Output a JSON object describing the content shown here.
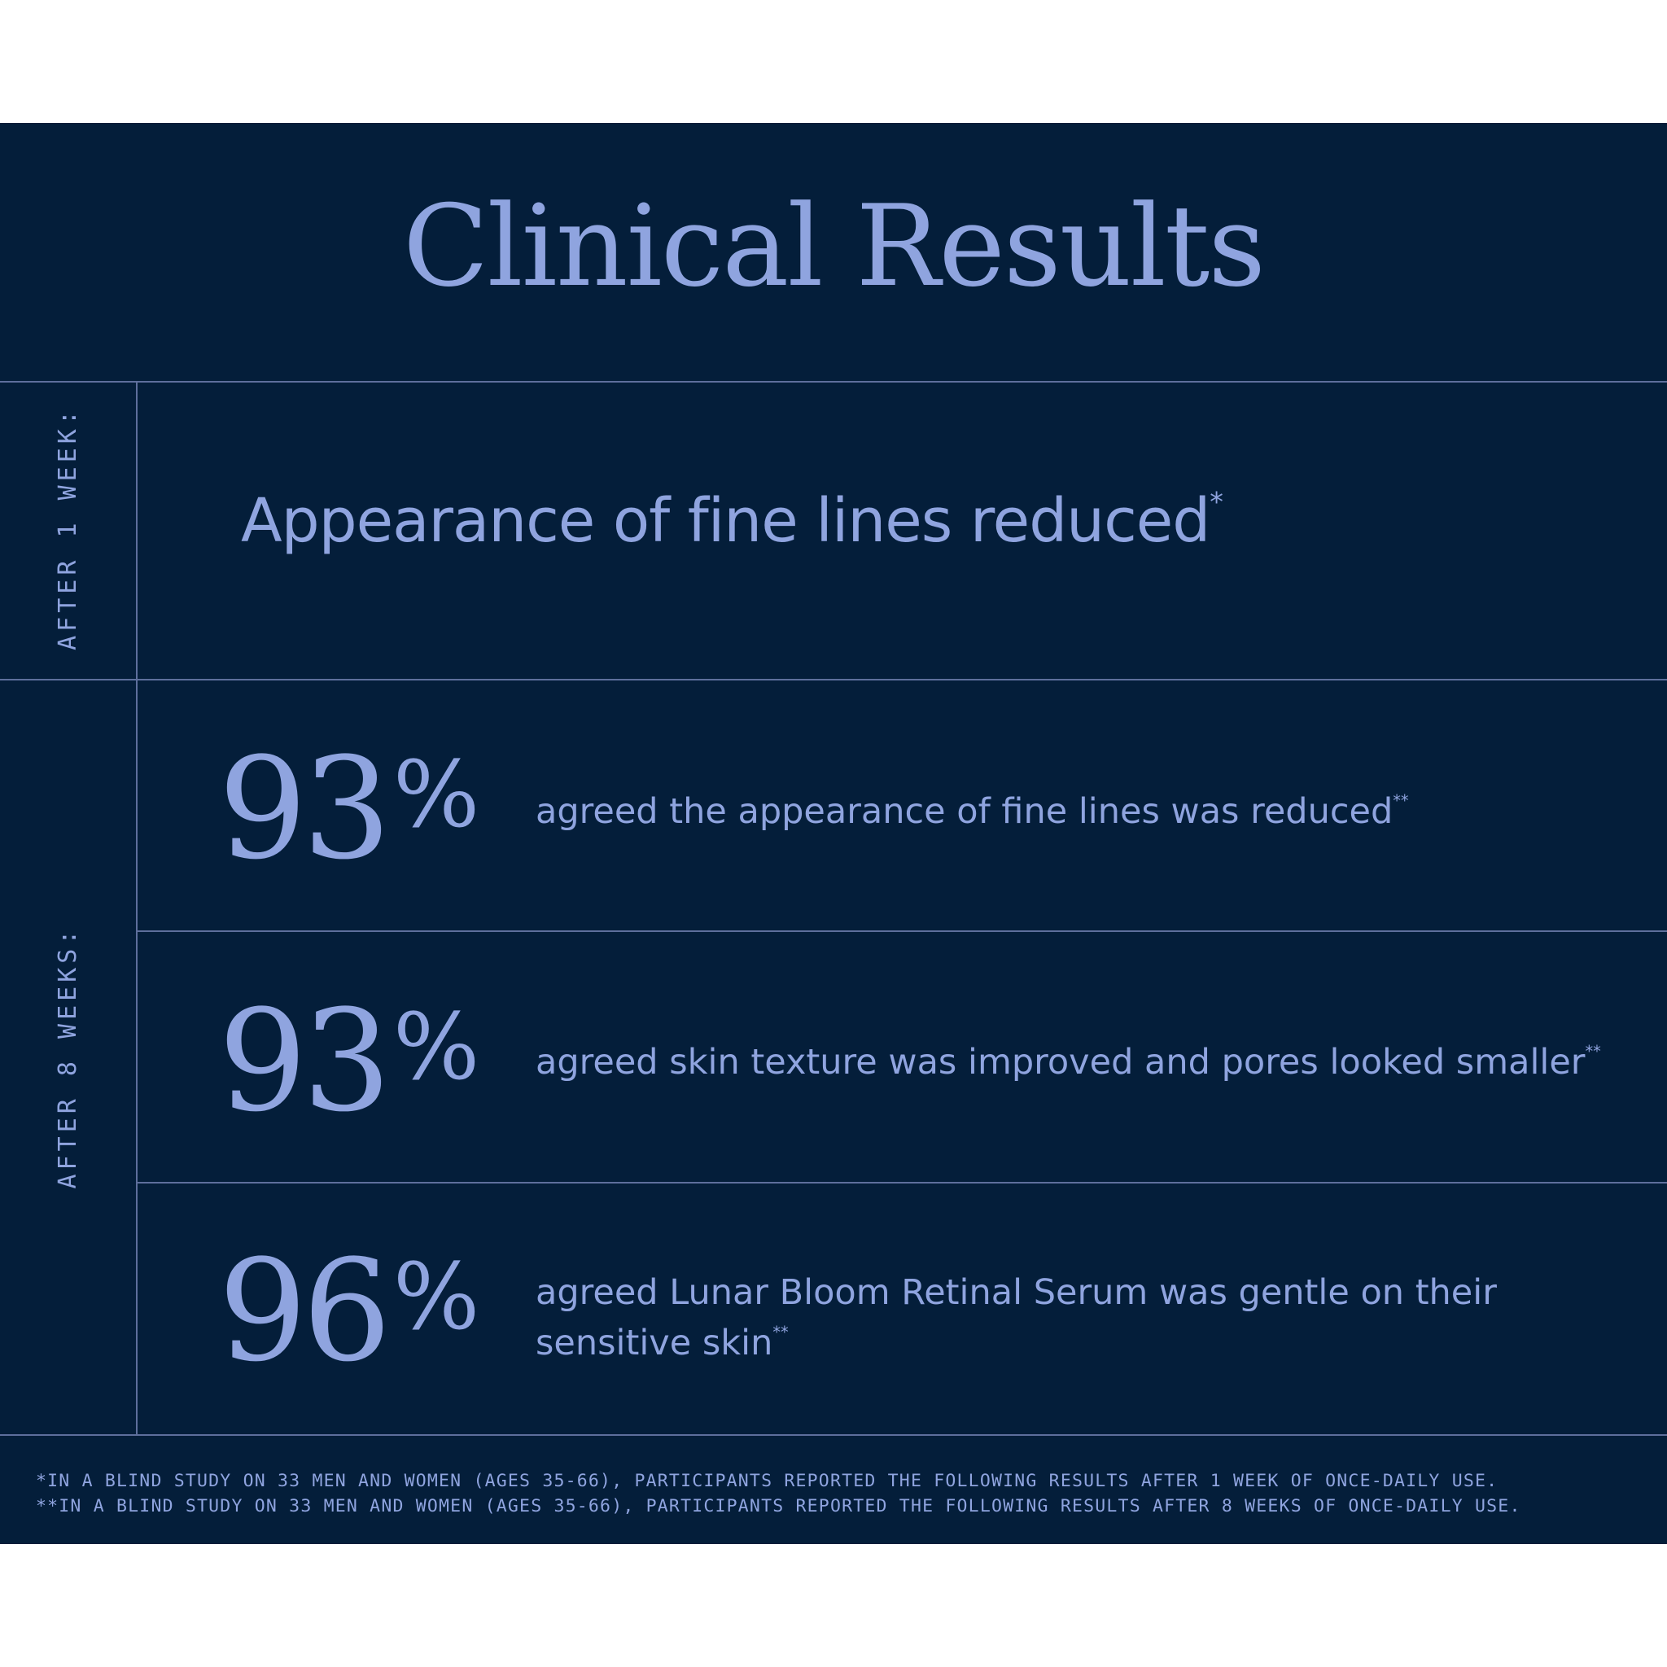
{
  "title": "Clinical Results",
  "sections": {
    "week1": {
      "label": "AFTER 1 WEEK:",
      "text": "Appearance of fine lines reduced",
      "marker": "*"
    },
    "week8": {
      "label": "AFTER 8 WEEKS:",
      "stats": [
        {
          "value": "93",
          "unit": "%",
          "text": "agreed the appearance of fine lines was reduced",
          "marker": "**"
        },
        {
          "value": "93",
          "unit": "%",
          "text": "agreed skin texture was improved and pores looked smaller",
          "marker": "**"
        },
        {
          "value": "96",
          "unit": "%",
          "text_line1": "agreed Lunar Bloom Retinal Serum was gentle on their",
          "text_line2": "sensitive skin",
          "marker": "**"
        }
      ]
    }
  },
  "footnotes": [
    "*IN A BLIND STUDY ON 33 MEN AND WOMEN (AGES 35-66), PARTICIPANTS REPORTED THE FOLLOWING RESULTS AFTER 1 WEEK OF ONCE-DAILY USE.",
    "**IN A BLIND STUDY ON 33 MEN AND WOMEN (AGES 35-66), PARTICIPANTS REPORTED THE FOLLOWING RESULTS AFTER 8 WEEKS OF ONCE-DAILY USE."
  ],
  "colors": {
    "background": "#041e3a",
    "accent": "#8fa4df",
    "divider": "#5e6f9c",
    "page": "#ffffff"
  }
}
